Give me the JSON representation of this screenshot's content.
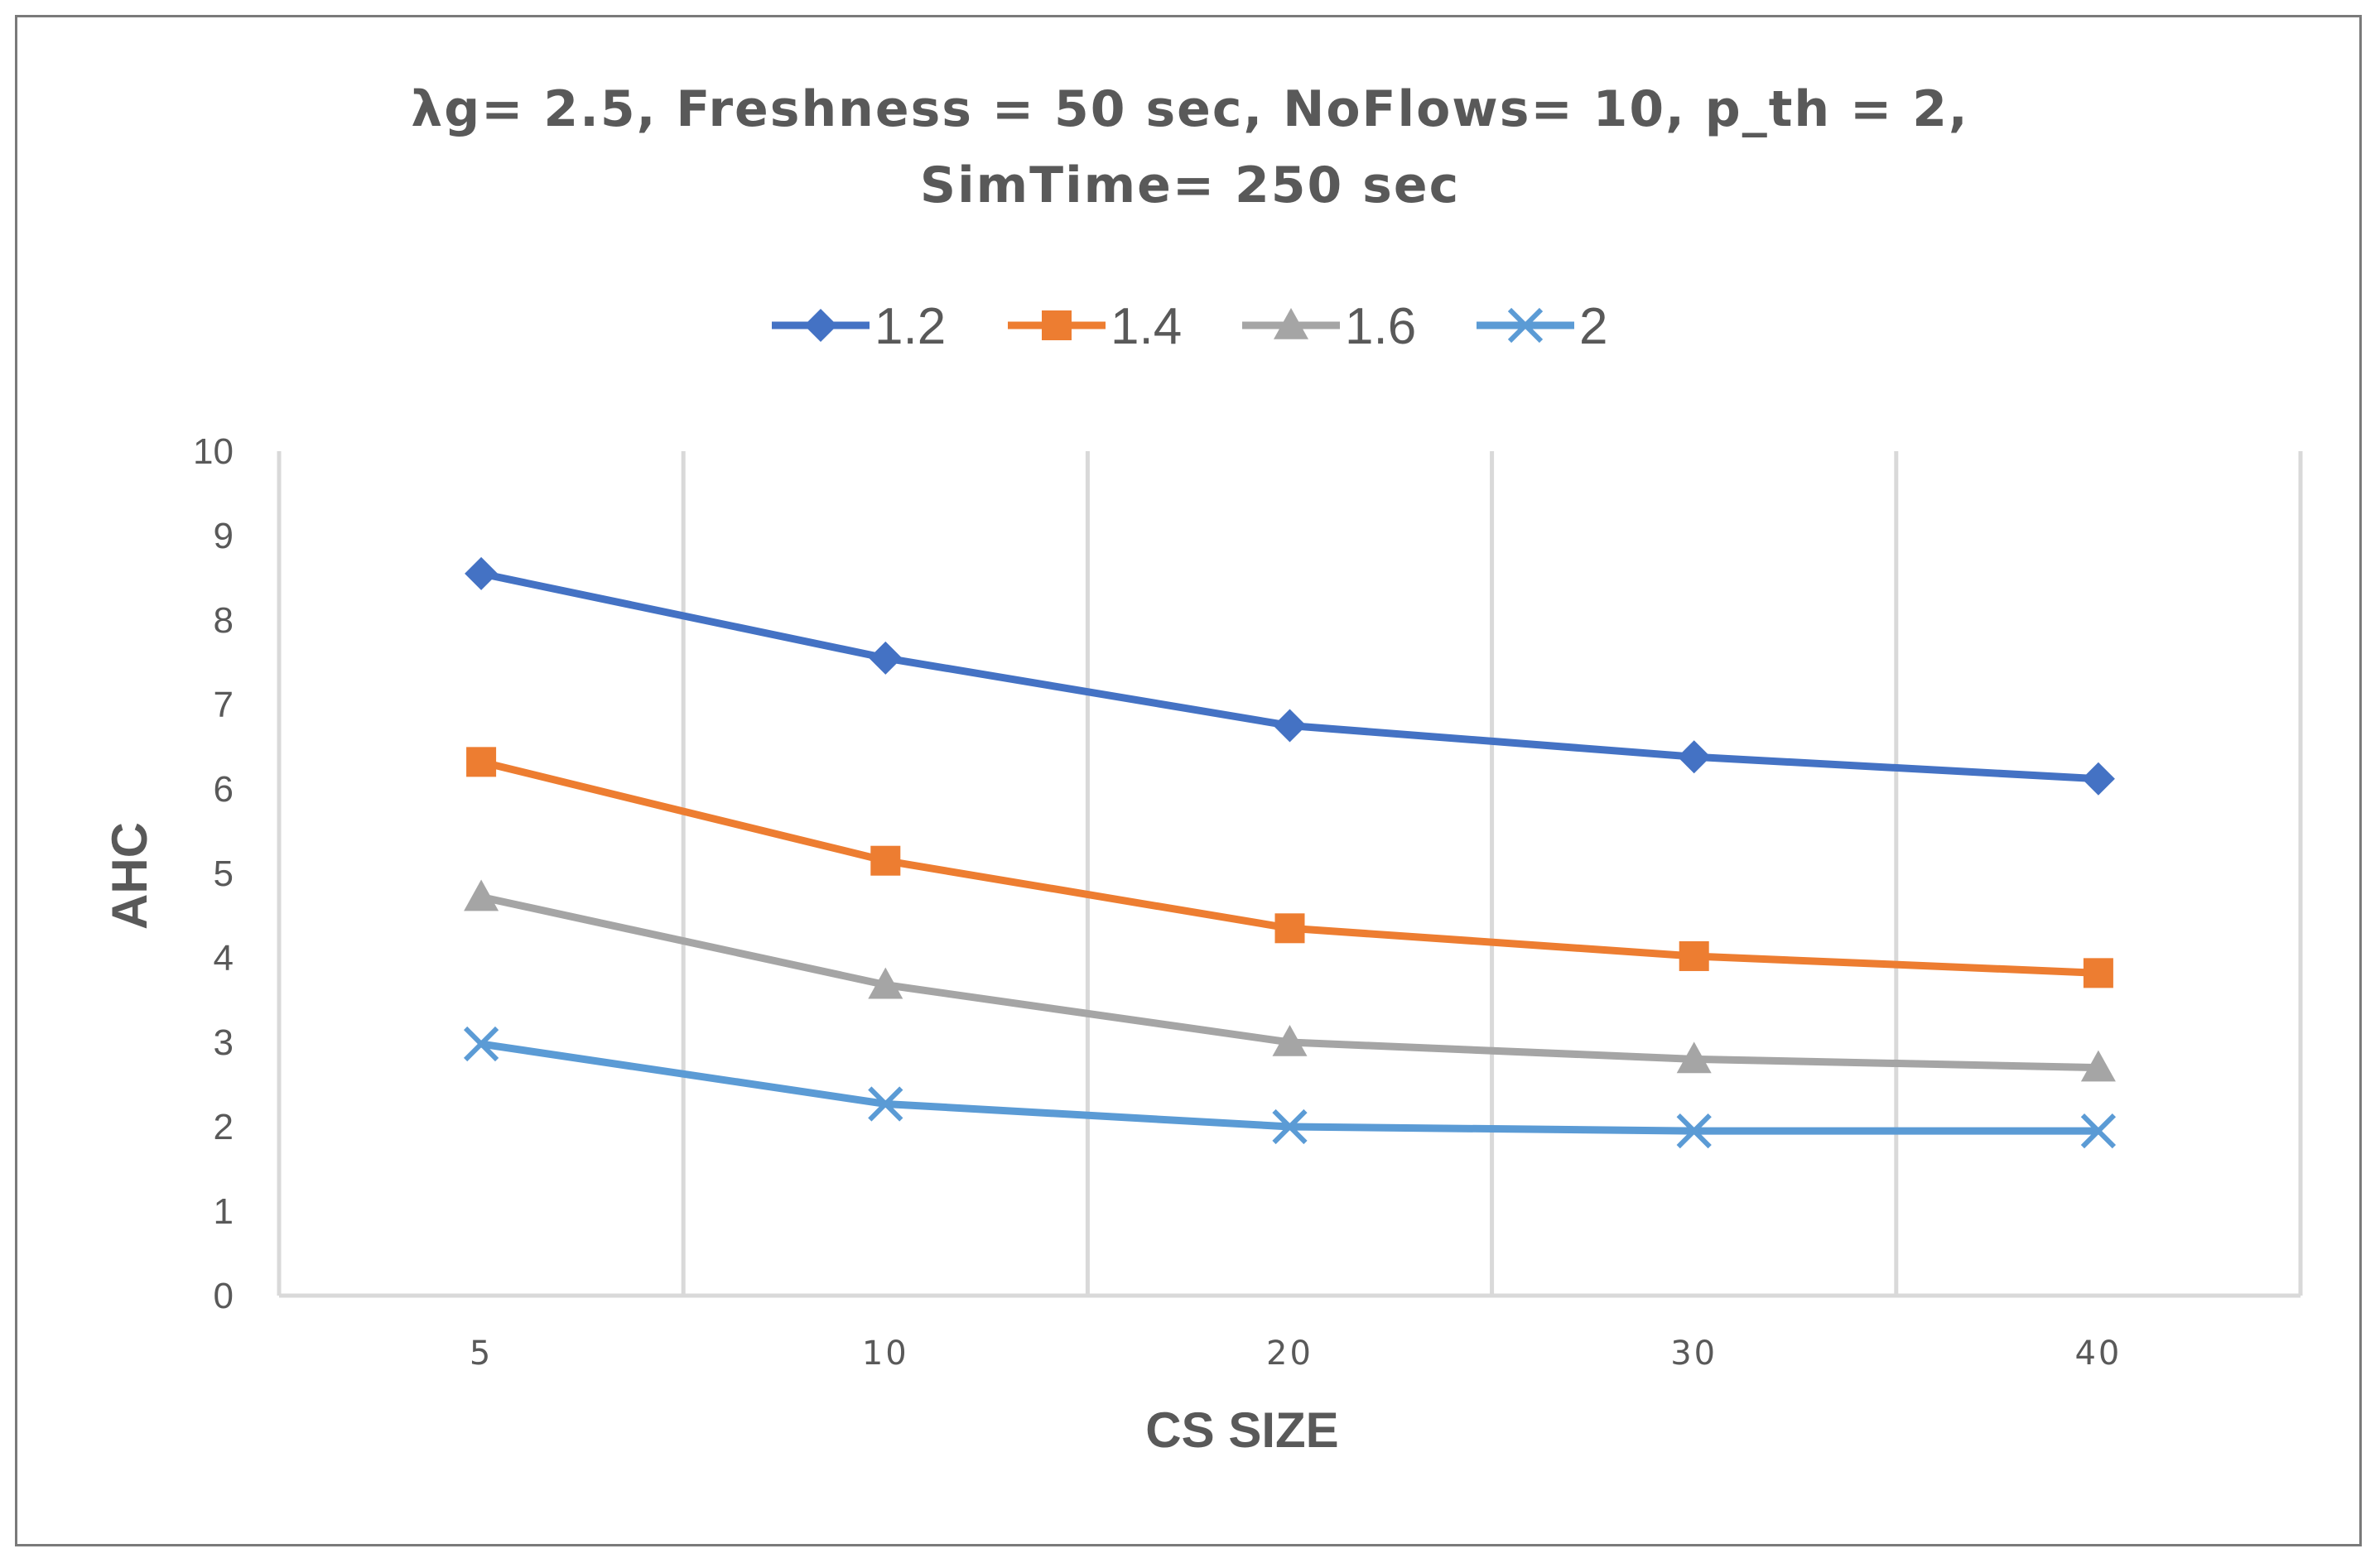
{
  "chart_data": {
    "type": "line",
    "title_line1": "λg= 2.5, Freshness = 50 sec, NoFlows= 10, p_th = 2,",
    "title_line2": "SimTime= 250 sec",
    "xlabel": "CS SIZE",
    "ylabel": "AHC",
    "categories": [
      "5",
      "10",
      "20",
      "30",
      "40"
    ],
    "ylim": [
      0,
      10
    ],
    "yticks": [
      "0",
      "1",
      "2",
      "3",
      "4",
      "5",
      "6",
      "7",
      "8",
      "9",
      "10"
    ],
    "grid": "vertical",
    "legend_position": "top",
    "series": [
      {
        "name": "1.2",
        "marker": "diamond",
        "color": "#4472C4",
        "values": [
          8.55,
          7.55,
          6.75,
          6.38,
          6.12
        ]
      },
      {
        "name": "1.4",
        "marker": "square",
        "color": "#ED7D31",
        "values": [
          6.32,
          5.15,
          4.35,
          4.02,
          3.82
        ]
      },
      {
        "name": "1.6",
        "marker": "triangle",
        "color": "#A5A5A5",
        "values": [
          4.72,
          3.68,
          3.0,
          2.8,
          2.7
        ]
      },
      {
        "name": "2",
        "marker": "x",
        "color": "#5B9BD5",
        "values": [
          2.98,
          2.27,
          2.0,
          1.95,
          1.95
        ]
      }
    ]
  }
}
